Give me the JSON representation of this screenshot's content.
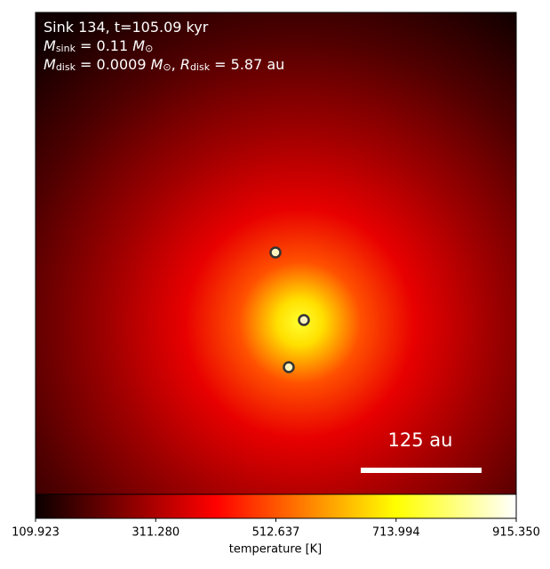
{
  "chart_data": {
    "type": "heatmap",
    "annotation_lines": [
      [
        {
          "text": "Sink 134, t=105.09 kyr",
          "style": "normal"
        }
      ],
      [
        {
          "text": "M",
          "style": "italic"
        },
        {
          "text": "sink",
          "style": "sub"
        },
        {
          "text": " = 0.11 ",
          "style": "normal"
        },
        {
          "text": "M",
          "style": "italic"
        },
        {
          "text": "⊙",
          "style": "sub"
        }
      ],
      [
        {
          "text": "M",
          "style": "italic"
        },
        {
          "text": "disk",
          "style": "sub"
        },
        {
          "text": " = 0.0009 ",
          "style": "normal"
        },
        {
          "text": "M",
          "style": "italic"
        },
        {
          "text": "⊙",
          "style": "sub"
        },
        {
          "text": ", ",
          "style": "normal"
        },
        {
          "text": "R",
          "style": "italic"
        },
        {
          "text": "disk",
          "style": "sub"
        },
        {
          "text": " = 5.87 au",
          "style": "normal"
        }
      ]
    ],
    "scale_bar_label": "125 au",
    "colorbar": {
      "label": "temperature [K]",
      "colormap": "hot",
      "xlim": [
        109.923,
        915.35
      ],
      "xticks": [
        109.923,
        {
          "value": 311.28,
          "label": "311.280"
        },
        512.637,
        713.994,
        {
          "value": 915.35,
          "label": "915.350"
        }
      ]
    }
  }
}
